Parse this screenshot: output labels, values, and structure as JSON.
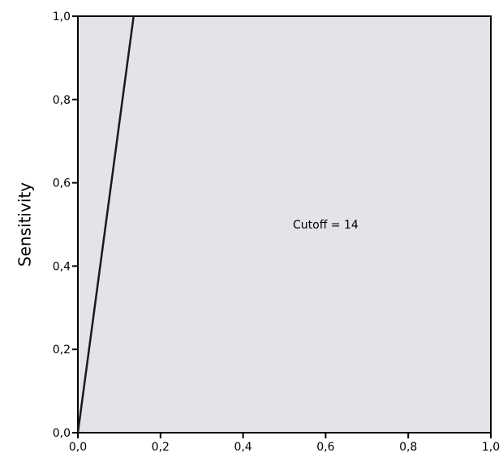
{
  "chart_data": {
    "type": "line",
    "title": "",
    "xlabel": "",
    "ylabel": "Sensitivity",
    "xlim": [
      0,
      1
    ],
    "ylim": [
      0,
      1
    ],
    "x_ticks": [
      0,
      0.2,
      0.4,
      0.6,
      0.8,
      1.0
    ],
    "x_tick_labels": [
      "0,0",
      "0,2",
      "0,4",
      "0,6",
      "0,8",
      "1,0"
    ],
    "y_ticks": [
      0,
      0.2,
      0.4,
      0.6,
      0.8,
      1.0
    ],
    "y_tick_labels": [
      "0,0",
      "0,2",
      "0,4",
      "0,6",
      "0,8",
      "1,0"
    ],
    "grid": false,
    "plot_background": "#e3e3e8",
    "line_color": "#1a1a1a",
    "series": [
      {
        "x": [
          0.0,
          0.135
        ],
        "y": [
          0.0,
          1.0
        ]
      }
    ],
    "annotations": [
      {
        "text": "Cutoff = 14",
        "x": 0.6,
        "y": 0.5
      }
    ]
  }
}
